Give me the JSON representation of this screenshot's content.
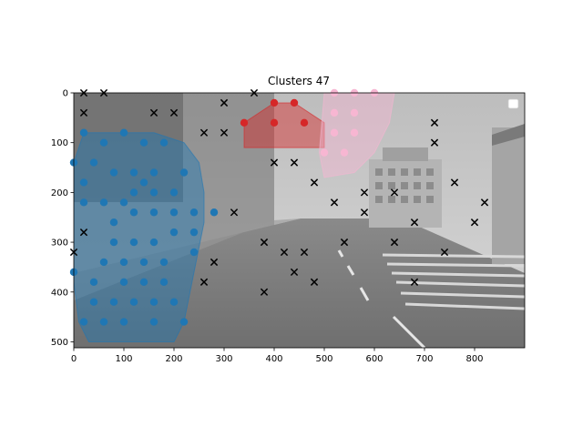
{
  "chart_data": {
    "type": "scatter",
    "title": "Clusters 47",
    "xlabel": "",
    "ylabel": "",
    "xlim": [
      0,
      900
    ],
    "ylim": [
      512,
      0
    ],
    "y_inverted": true,
    "x_ticks": [
      0,
      100,
      200,
      300,
      400,
      500,
      600,
      700,
      800
    ],
    "y_ticks": [
      0,
      100,
      200,
      300,
      400,
      500
    ],
    "grid": false,
    "legend": "top-right (empty)",
    "background": "grayscale street photograph",
    "colors": {
      "blue": "#1f77b4",
      "red": "#d62728",
      "pink": "#f7b6d2",
      "cross": "#000000"
    },
    "hulls": [
      {
        "color": "blue",
        "points": [
          [
            20,
            80
          ],
          [
            160,
            80
          ],
          [
            220,
            100
          ],
          [
            250,
            140
          ],
          [
            260,
            200
          ],
          [
            260,
            260
          ],
          [
            240,
            360
          ],
          [
            220,
            460
          ],
          [
            200,
            500
          ],
          [
            30,
            500
          ],
          [
            10,
            460
          ],
          [
            0,
            380
          ],
          [
            0,
            140
          ],
          [
            20,
            80
          ]
        ]
      },
      {
        "color": "red",
        "points": [
          [
            340,
            60
          ],
          [
            340,
            110
          ],
          [
            500,
            110
          ],
          [
            500,
            60
          ],
          [
            440,
            20
          ],
          [
            400,
            20
          ],
          [
            340,
            60
          ]
        ]
      },
      {
        "color": "pink",
        "points": [
          [
            500,
            0
          ],
          [
            640,
            0
          ],
          [
            630,
            60
          ],
          [
            600,
            120
          ],
          [
            560,
            160
          ],
          [
            500,
            170
          ],
          [
            490,
            120
          ],
          [
            500,
            0
          ]
        ]
      }
    ],
    "series": [
      {
        "marker": "o",
        "color": "blue",
        "points": [
          [
            20,
            80
          ],
          [
            60,
            100
          ],
          [
            100,
            80
          ],
          [
            140,
            100
          ],
          [
            180,
            100
          ],
          [
            0,
            140
          ],
          [
            40,
            140
          ],
          [
            80,
            160
          ],
          [
            120,
            160
          ],
          [
            160,
            160
          ],
          [
            220,
            160
          ],
          [
            20,
            180
          ],
          [
            140,
            180
          ],
          [
            120,
            200
          ],
          [
            160,
            200
          ],
          [
            20,
            220
          ],
          [
            60,
            220
          ],
          [
            100,
            220
          ],
          [
            200,
            200
          ],
          [
            200,
            240
          ],
          [
            120,
            240
          ],
          [
            160,
            240
          ],
          [
            240,
            240
          ],
          [
            280,
            240
          ],
          [
            80,
            260
          ],
          [
            200,
            280
          ],
          [
            240,
            280
          ],
          [
            80,
            300
          ],
          [
            120,
            300
          ],
          [
            160,
            300
          ],
          [
            240,
            320
          ],
          [
            60,
            340
          ],
          [
            100,
            340
          ],
          [
            140,
            340
          ],
          [
            180,
            340
          ],
          [
            0,
            360
          ],
          [
            40,
            380
          ],
          [
            100,
            380
          ],
          [
            140,
            380
          ],
          [
            180,
            380
          ],
          [
            40,
            420
          ],
          [
            80,
            420
          ],
          [
            120,
            420
          ],
          [
            160,
            420
          ],
          [
            200,
            420
          ],
          [
            20,
            460
          ],
          [
            60,
            460
          ],
          [
            100,
            460
          ],
          [
            160,
            460
          ],
          [
            220,
            460
          ]
        ]
      },
      {
        "marker": "o",
        "color": "red",
        "points": [
          [
            400,
            20
          ],
          [
            440,
            20
          ],
          [
            340,
            60
          ],
          [
            400,
            60
          ],
          [
            460,
            60
          ]
        ]
      },
      {
        "marker": "o",
        "color": "pink",
        "points": [
          [
            520,
            0
          ],
          [
            560,
            0
          ],
          [
            600,
            0
          ],
          [
            520,
            40
          ],
          [
            560,
            40
          ],
          [
            520,
            80
          ],
          [
            560,
            80
          ],
          [
            500,
            120
          ],
          [
            540,
            120
          ]
        ]
      },
      {
        "marker": "x",
        "color": "cross",
        "points": [
          [
            20,
            0
          ],
          [
            60,
            0
          ],
          [
            360,
            0
          ],
          [
            20,
            40
          ],
          [
            160,
            40
          ],
          [
            200,
            40
          ],
          [
            300,
            20
          ],
          [
            720,
            60
          ],
          [
            260,
            80
          ],
          [
            300,
            80
          ],
          [
            720,
            100
          ],
          [
            400,
            140
          ],
          [
            440,
            140
          ],
          [
            480,
            180
          ],
          [
            760,
            180
          ],
          [
            580,
            200
          ],
          [
            640,
            200
          ],
          [
            520,
            220
          ],
          [
            820,
            220
          ],
          [
            320,
            240
          ],
          [
            580,
            240
          ],
          [
            680,
            260
          ],
          [
            800,
            260
          ],
          [
            20,
            280
          ],
          [
            380,
            300
          ],
          [
            540,
            300
          ],
          [
            640,
            300
          ],
          [
            420,
            320
          ],
          [
            460,
            320
          ],
          [
            740,
            320
          ],
          [
            0,
            320
          ],
          [
            280,
            340
          ],
          [
            440,
            360
          ],
          [
            260,
            380
          ],
          [
            480,
            380
          ],
          [
            680,
            380
          ],
          [
            380,
            400
          ]
        ]
      }
    ]
  }
}
